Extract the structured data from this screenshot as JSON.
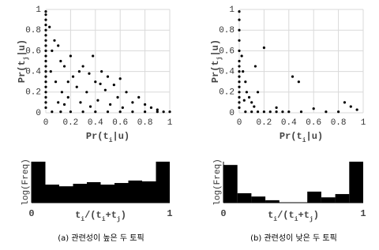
{
  "chart_data": [
    {
      "type": "scatter",
      "x_label": [
        "Pr(t",
        "i",
        "|u)"
      ],
      "y_label": [
        "Pr(t",
        "j",
        "|u)"
      ],
      "xlim": [
        0,
        1
      ],
      "ylim": [
        0,
        1
      ],
      "xticks": [
        0,
        0.2,
        0.4,
        0.6,
        0.8,
        1
      ],
      "yticks": [
        0,
        0.2,
        0.4,
        0.6,
        0.8,
        1
      ],
      "grid": true,
      "series": [
        {
          "color": "#000000",
          "x": [
            0,
            0,
            0,
            0,
            0,
            0,
            0,
            0,
            0,
            0,
            0,
            0,
            0,
            0,
            0,
            0,
            0,
            0,
            0,
            0,
            0.03,
            0.05,
            0.04,
            0.07,
            0.1,
            0.12,
            0.15,
            0.08,
            0.13,
            0.18,
            0.2,
            0.22,
            0.25,
            0.28,
            0.3,
            0.33,
            0.35,
            0.38,
            0.4,
            0.42,
            0.45,
            0.48,
            0.5,
            0.52,
            0.55,
            0.58,
            0.6,
            0.62,
            0.65,
            0.7,
            0.75,
            0.8,
            0.85,
            0.9,
            0.18,
            0.27,
            0.36,
            0.44,
            0.1,
            0.15,
            0.05,
            0.12,
            0.2,
            0.3,
            0.4,
            0.5,
            0.6,
            0.7,
            0.8,
            0.9,
            0.95,
            1.0
          ],
          "y": [
            0.98,
            0.95,
            0.9,
            0.85,
            0.8,
            0.75,
            0.7,
            0.65,
            0.6,
            0.55,
            0.5,
            0.45,
            0.4,
            0.35,
            0.3,
            0.25,
            0.2,
            0.15,
            0.1,
            0.05,
            0.83,
            0.6,
            0.4,
            0.7,
            0.65,
            0.5,
            0.45,
            0.3,
            0.2,
            0.15,
            0.55,
            0.35,
            0.25,
            0.1,
            0.45,
            0.2,
            0.38,
            0.55,
            0.3,
            0.12,
            0.4,
            0.22,
            0.35,
            0.08,
            0.27,
            0.15,
            0.33,
            0.05,
            0.2,
            0.1,
            0.15,
            0.08,
            0.05,
            0.03,
            0.3,
            0.4,
            0.06,
            0.28,
            0.1,
            0.08,
            0.01,
            0.01,
            0.01,
            0.01,
            0.01,
            0.01,
            0.01,
            0.01,
            0.01,
            0.01,
            0.01,
            0.01
          ]
        }
      ]
    },
    {
      "type": "scatter",
      "x_label": [
        "Pr(t",
        "i",
        "|u)"
      ],
      "y_label": [
        "Pr(t",
        "j",
        "|u)"
      ],
      "xlim": [
        0,
        1
      ],
      "ylim": [
        0,
        1
      ],
      "xticks": [
        0,
        0.2,
        0.4,
        0.6,
        0.8,
        1
      ],
      "yticks": [
        0,
        0.2,
        0.4,
        0.6,
        0.8,
        1
      ],
      "grid": true,
      "series": [
        {
          "color": "#000000",
          "x": [
            0,
            0,
            0,
            0,
            0,
            0,
            0,
            0,
            0,
            0,
            0,
            0,
            0,
            0,
            0,
            0.02,
            0.03,
            0.05,
            0.06,
            0.08,
            0.1,
            0.04,
            0.12,
            0.2,
            0.13,
            0.43,
            0.48,
            0.15,
            0.3,
            0.85,
            0.9,
            0.95,
            0.6,
            0.05,
            0.1,
            0.15,
            0.2,
            0.25,
            0.3,
            0.35,
            0.4,
            0.5,
            0.7,
            0.8
          ],
          "y": [
            0.98,
            0.9,
            0.8,
            0.7,
            0.6,
            0.5,
            0.45,
            0.4,
            0.35,
            0.3,
            0.25,
            0.2,
            0.15,
            0.1,
            0.05,
            0.55,
            0.4,
            0.3,
            0.2,
            0.15,
            0.1,
            0.12,
            0.06,
            0.63,
            0.45,
            0.35,
            0.3,
            0.2,
            0.05,
            0.1,
            0.06,
            0.03,
            0.04,
            0.01,
            0.01,
            0.01,
            0.01,
            0.01,
            0.01,
            0.01,
            0.01,
            0.01,
            0.01,
            0.01
          ]
        }
      ]
    },
    {
      "type": "histogram",
      "y_label": "log(Freq)",
      "x_label": [
        "t",
        "i",
        "/(t",
        "i",
        "+t",
        "j",
        ")"
      ],
      "bins": [
        0,
        0.1,
        0.2,
        0.3,
        0.4,
        0.5,
        0.6,
        0.7,
        0.8,
        0.9,
        1
      ],
      "values": [
        1.0,
        0.44,
        0.4,
        0.46,
        0.5,
        0.44,
        0.48,
        0.54,
        0.52,
        1.0
      ],
      "xlim": [
        0,
        1
      ],
      "xticks": [
        0,
        1
      ],
      "ylim": [
        0,
        1
      ],
      "color": "#000000"
    },
    {
      "type": "histogram",
      "y_label": "log(Freq)",
      "x_label": [
        "t",
        "i",
        "/(t",
        "i",
        "+t",
        "j",
        ")"
      ],
      "bins": [
        0,
        0.1,
        0.2,
        0.3,
        0.4,
        0.5,
        0.6,
        0.7,
        0.8,
        0.9,
        1
      ],
      "values": [
        0.92,
        0.23,
        0.15,
        0.06,
        0,
        0,
        0.27,
        0.13,
        0.21,
        1.0
      ],
      "xlim": [
        0,
        1
      ],
      "xticks": [
        0,
        1
      ],
      "ylim": [
        0,
        1
      ],
      "color": "#000000"
    }
  ],
  "captions": [
    "(a) 관련성이 높은 두 토픽",
    "(b) 관련성이 낮은 두 토픽"
  ]
}
